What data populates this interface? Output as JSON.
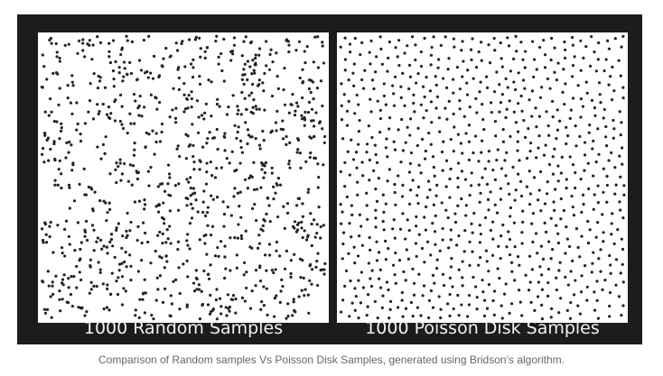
{
  "figure": {
    "left_panel": {
      "label": "1000 Random Samples",
      "sample_count": 1000,
      "method": "random"
    },
    "right_panel": {
      "label": "1000 Poisson Disk Samples",
      "sample_count": 1000,
      "method": "poisson-disk"
    }
  },
  "caption": "Comparison of Random samples Vs Poisson Disk Samples, generated using Bridson’s algorithm.",
  "colors": {
    "frame": "#1c1c1c",
    "dot": "#222222",
    "label_text": "#f2f2f2",
    "caption_text": "#666666"
  }
}
